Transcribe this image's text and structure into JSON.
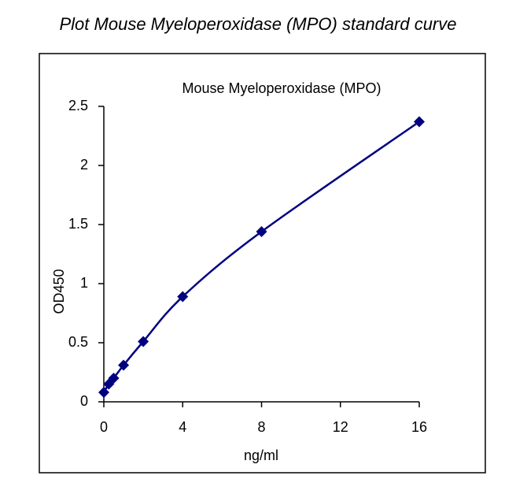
{
  "header": {
    "title": "Plot Mouse Myeloperoxidase (MPO) standard curve"
  },
  "chart_data": {
    "type": "scatter",
    "title": "Mouse Myeloperoxidase (MPO)",
    "x_label": "ng/ml",
    "y_label": "OD450",
    "series": [
      {
        "x": [
          0,
          0.25,
          0.5,
          1,
          2,
          4,
          8,
          16
        ],
        "values": [
          0.08,
          0.15,
          0.2,
          0.31,
          0.51,
          0.89,
          1.44,
          2.37
        ],
        "color": "#000080"
      }
    ],
    "smooth_line": true,
    "xlim": [
      0,
      16
    ],
    "xticks": [
      0,
      4,
      8,
      12,
      16
    ],
    "ylim": [
      0,
      2.5
    ],
    "yticks": [
      0,
      0.5,
      1,
      1.5,
      2,
      2.5
    ],
    "grid": false
  }
}
